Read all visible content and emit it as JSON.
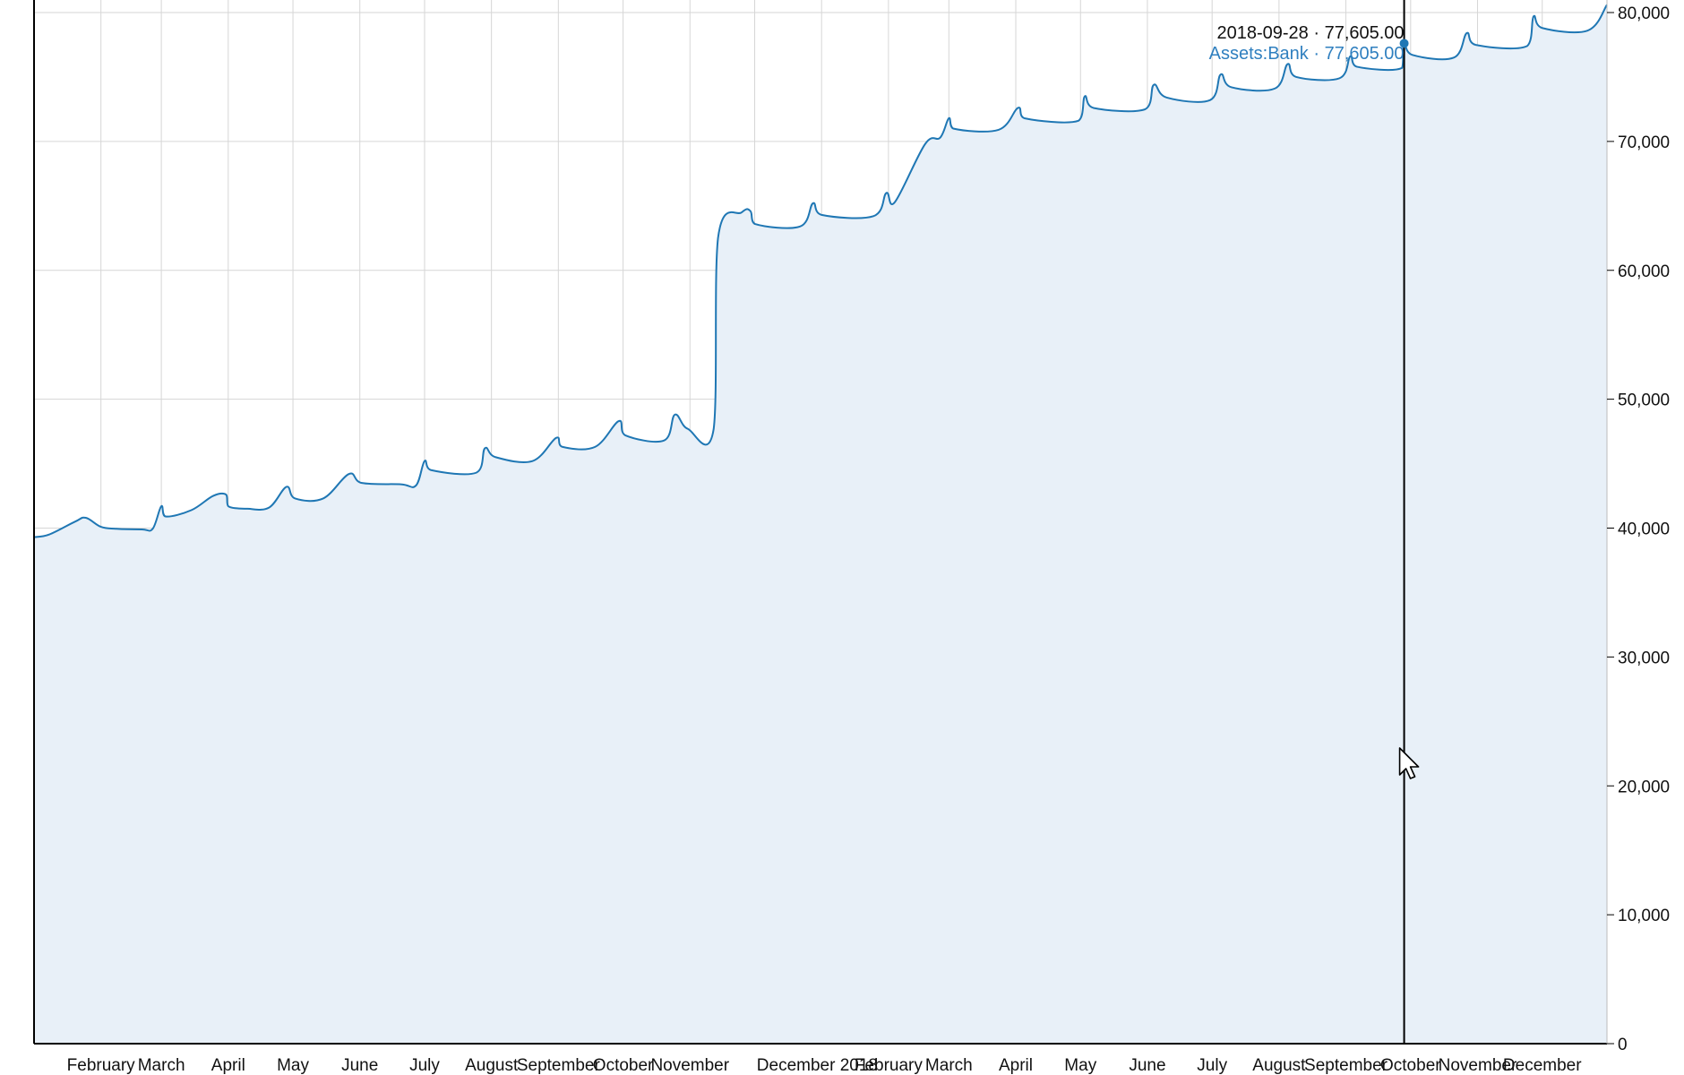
{
  "chart_data": {
    "type": "area",
    "title": "",
    "xlabel": "",
    "ylabel": "",
    "x_ticks": [
      "February",
      "March",
      "April",
      "May",
      "June",
      "July",
      "August",
      "September",
      "October",
      "November",
      "December 2018",
      "February",
      "March",
      "April",
      "May",
      "June",
      "July",
      "August",
      "September",
      "October",
      "November",
      "December"
    ],
    "y_ticks": [
      "0",
      "10,000",
      "20,000",
      "30,000",
      "40,000",
      "50,000",
      "60,000",
      "70,000",
      "80,000"
    ],
    "ylim": [
      0,
      80000
    ],
    "grid": true,
    "series": [
      {
        "name": "Assets:Bank",
        "color": "#1f77b4",
        "fill": "#e8f0f8",
        "points": [
          [
            "2017-01-01",
            39300
          ],
          [
            "2017-01-08",
            39500
          ],
          [
            "2017-01-20",
            40500
          ],
          [
            "2017-01-25",
            40800
          ],
          [
            "2017-02-01",
            40100
          ],
          [
            "2017-02-08",
            39950
          ],
          [
            "2017-02-20",
            39900
          ],
          [
            "2017-02-25",
            39950
          ],
          [
            "2017-03-01",
            41700
          ],
          [
            "2017-03-03",
            40900
          ],
          [
            "2017-03-15",
            41400
          ],
          [
            "2017-03-25",
            42500
          ],
          [
            "2017-03-31",
            42600
          ],
          [
            "2017-04-01",
            41700
          ],
          [
            "2017-04-10",
            41500
          ],
          [
            "2017-04-20",
            41600
          ],
          [
            "2017-04-28",
            43200
          ],
          [
            "2017-05-02",
            42300
          ],
          [
            "2017-05-15",
            42300
          ],
          [
            "2017-05-27",
            44200
          ],
          [
            "2017-06-02",
            43500
          ],
          [
            "2017-06-20",
            43400
          ],
          [
            "2017-06-27",
            43300
          ],
          [
            "2017-07-01",
            45200
          ],
          [
            "2017-07-04",
            44500
          ],
          [
            "2017-07-25",
            44300
          ],
          [
            "2017-07-29",
            46200
          ],
          [
            "2017-08-03",
            45500
          ],
          [
            "2017-08-20",
            45200
          ],
          [
            "2017-08-31",
            47000
          ],
          [
            "2017-09-03",
            46300
          ],
          [
            "2017-09-18",
            46300
          ],
          [
            "2017-09-29",
            48300
          ],
          [
            "2017-10-02",
            47200
          ],
          [
            "2017-10-20",
            46800
          ],
          [
            "2017-10-25",
            48800
          ],
          [
            "2017-10-31",
            47700
          ],
          [
            "2017-11-12",
            47700
          ],
          [
            "2017-11-14",
            62500
          ],
          [
            "2017-11-25",
            64500
          ],
          [
            "2017-11-29",
            64600
          ],
          [
            "2017-12-01",
            63600
          ],
          [
            "2017-12-22",
            63400
          ],
          [
            "2017-12-28",
            65200
          ],
          [
            "2018-01-01",
            64300
          ],
          [
            "2018-01-25",
            64200
          ],
          [
            "2018-01-31",
            66000
          ],
          [
            "2018-02-04",
            65300
          ],
          [
            "2018-02-18",
            69800
          ],
          [
            "2018-02-25",
            70300
          ],
          [
            "2018-03-01",
            71800
          ],
          [
            "2018-03-03",
            71000
          ],
          [
            "2018-03-24",
            70900
          ],
          [
            "2018-04-02",
            72600
          ],
          [
            "2018-04-05",
            71800
          ],
          [
            "2018-04-30",
            71600
          ],
          [
            "2018-05-03",
            73500
          ],
          [
            "2018-05-07",
            72600
          ],
          [
            "2018-05-31",
            72500
          ],
          [
            "2018-06-04",
            74400
          ],
          [
            "2018-06-10",
            73400
          ],
          [
            "2018-06-30",
            73200
          ],
          [
            "2018-07-05",
            75200
          ],
          [
            "2018-07-10",
            74200
          ],
          [
            "2018-07-30",
            74100
          ],
          [
            "2018-08-05",
            76000
          ],
          [
            "2018-08-09",
            75000
          ],
          [
            "2018-08-29",
            74900
          ],
          [
            "2018-09-03",
            76600
          ],
          [
            "2018-09-06",
            75800
          ],
          [
            "2018-09-27",
            75700
          ],
          [
            "2018-09-28",
            77605
          ],
          [
            "2018-10-02",
            76700
          ],
          [
            "2018-10-21",
            76500
          ],
          [
            "2018-10-27",
            78400
          ],
          [
            "2018-10-31",
            77500
          ],
          [
            "2018-11-24",
            77400
          ],
          [
            "2018-11-27",
            79700
          ],
          [
            "2018-12-01",
            78800
          ],
          [
            "2018-12-22",
            78600
          ],
          [
            "2018-12-31",
            80600
          ]
        ]
      }
    ],
    "tooltip": {
      "date": "2018-09-28",
      "total": "77,605.00",
      "series_name": "Assets:Bank",
      "series_value": "77,605.00"
    }
  }
}
